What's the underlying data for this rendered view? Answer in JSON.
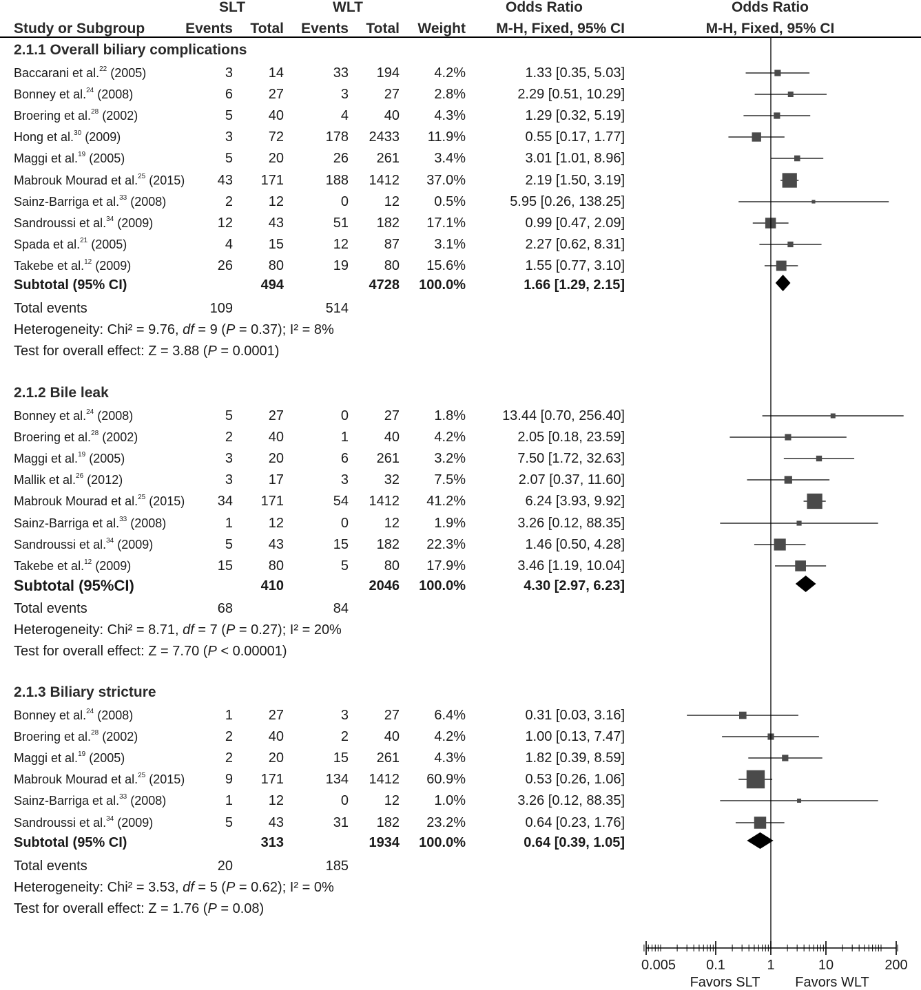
{
  "header": {
    "group1": "SLT",
    "group2": "WLT",
    "or_col": "Odds Ratio",
    "or_col2": "Odds Ratio",
    "study_col": "Study or Subgroup",
    "events1": "Events",
    "total1": "Total",
    "events2": "Events",
    "total2": "Total",
    "weight": "Weight",
    "method1": "M-H, Fixed, 95% CI",
    "method2": "M-H, Fixed, 95% CI"
  },
  "chart_data": {
    "type": "forest",
    "x_scale": "log",
    "xlim": [
      0.005,
      200
    ],
    "reference_line": 1,
    "ticks": [
      0.005,
      0.1,
      1,
      10,
      200
    ],
    "tick_labels": [
      "0.005",
      "0.1",
      "1",
      "10",
      "200"
    ],
    "favors_left": "Favors SLT",
    "favors_right": "Favors WLT",
    "subgroups": [
      {
        "title": "2.1.1 Overall biliary complications",
        "studies": [
          {
            "author": "Baccarani et al.",
            "ref": "22",
            "year": "(2005)",
            "e1": "3",
            "t1": "14",
            "e2": "33",
            "t2": "194",
            "weight": "4.2%",
            "ci_text": "1.33 [0.35, 5.03]",
            "or": 1.33,
            "lo": 0.35,
            "hi": 5.03
          },
          {
            "author": "Bonney et al.",
            "ref": "24",
            "year": "(2008)",
            "e1": "6",
            "t1": "27",
            "e2": "3",
            "t2": "27",
            "weight": "2.8%",
            "ci_text": "2.29 [0.51, 10.29]",
            "or": 2.29,
            "lo": 0.51,
            "hi": 10.29
          },
          {
            "author": "Broering et al.",
            "ref": "28",
            "year": "(2002)",
            "e1": "5",
            "t1": "40",
            "e2": "4",
            "t2": "40",
            "weight": "4.3%",
            "ci_text": "1.29 [0.32, 5.19]",
            "or": 1.29,
            "lo": 0.32,
            "hi": 5.19
          },
          {
            "author": "Hong et al.",
            "ref": "30",
            "year": "(2009)",
            "e1": "3",
            "t1": "72",
            "e2": "178",
            "t2": "2433",
            "weight": "11.9%",
            "ci_text": "0.55 [0.17, 1.77]",
            "or": 0.55,
            "lo": 0.17,
            "hi": 1.77
          },
          {
            "author": "Maggi et al.",
            "ref": "19",
            "year": "(2005)",
            "e1": "5",
            "t1": "20",
            "e2": "26",
            "t2": "261",
            "weight": "3.4%",
            "ci_text": "3.01 [1.01, 8.96]",
            "or": 3.01,
            "lo": 1.01,
            "hi": 8.96
          },
          {
            "author": "Mabrouk Mourad et al.",
            "ref": "25",
            "year": "(2015)",
            "e1": "43",
            "t1": "171",
            "e2": "188",
            "t2": "1412",
            "weight": "37.0%",
            "ci_text": "2.19 [1.50, 3.19]",
            "or": 2.19,
            "lo": 1.5,
            "hi": 3.19
          },
          {
            "author": "Sainz-Barriga et al.",
            "ref": "33",
            "year": "(2008)",
            "e1": "2",
            "t1": "12",
            "e2": "0",
            "t2": "12",
            "weight": "0.5%",
            "ci_text": "5.95 [0.26, 138.25]",
            "or": 5.95,
            "lo": 0.26,
            "hi": 138.25
          },
          {
            "author": "Sandroussi et al.",
            "ref": "34",
            "year": "(2009)",
            "e1": "12",
            "t1": "43",
            "e2": "51",
            "t2": "182",
            "weight": "17.1%",
            "ci_text": "0.99 [0.47, 2.09]",
            "or": 0.99,
            "lo": 0.47,
            "hi": 2.09
          },
          {
            "author": "Spada et al.",
            "ref": "21",
            "year": "(2005)",
            "e1": "4",
            "t1": "15",
            "e2": "12",
            "t2": "87",
            "weight": "3.1%",
            "ci_text": "2.27 [0.62, 8.31]",
            "or": 2.27,
            "lo": 0.62,
            "hi": 8.31
          },
          {
            "author": "Takebe et al.",
            "ref": "12",
            "year": "(2009)",
            "e1": "26",
            "t1": "80",
            "e2": "19",
            "t2": "80",
            "weight": "15.6%",
            "ci_text": "1.55 [0.77, 3.10]",
            "or": 1.55,
            "lo": 0.77,
            "hi": 3.1
          }
        ],
        "subtotal": {
          "label": "Subtotal (95% CI)",
          "t1": "494",
          "t2": "4728",
          "weight": "100.0%",
          "ci_text": "1.66 [1.29, 2.15]",
          "or": 1.66,
          "lo": 1.29,
          "hi": 2.15
        },
        "total_events": {
          "label": "Total events",
          "e1": "109",
          "e2": "514"
        },
        "heterogeneity": {
          "pre": "Heterogeneity: Chi² = 9.76, ",
          "df": "df",
          "mid": " = 9 (",
          "p": "P",
          "post": " = 0.37); I² = 8%"
        },
        "overall": {
          "pre": "Test for overall effect: Z = 3.88 (",
          "p": "P",
          "post": " = 0.0001)"
        }
      },
      {
        "title": "2.1.2 Bile leak",
        "studies": [
          {
            "author": "Bonney et al.",
            "ref": "24",
            "year": "(2008)",
            "e1": "5",
            "t1": "27",
            "e2": "0",
            "t2": "27",
            "weight": "1.8%",
            "ci_text": "13.44 [0.70, 256.40]",
            "or": 13.44,
            "lo": 0.7,
            "hi": 256.4
          },
          {
            "author": "Broering et al.",
            "ref": "28",
            "year": "(2002)",
            "e1": "2",
            "t1": "40",
            "e2": "1",
            "t2": "40",
            "weight": "4.2%",
            "ci_text": "2.05 [0.18, 23.59]",
            "or": 2.05,
            "lo": 0.18,
            "hi": 23.59
          },
          {
            "author": "Maggi et al.",
            "ref": "19",
            "year": "(2005)",
            "e1": "3",
            "t1": "20",
            "e2": "6",
            "t2": "261",
            "weight": "3.2%",
            "ci_text": "7.50 [1.72, 32.63]",
            "or": 7.5,
            "lo": 1.72,
            "hi": 32.63
          },
          {
            "author": "Mallik et al.",
            "ref": "26",
            "year": "(2012)",
            "e1": "3",
            "t1": "17",
            "e2": "3",
            "t2": "32",
            "weight": "7.5%",
            "ci_text": "2.07 [0.37, 11.60]",
            "or": 2.07,
            "lo": 0.37,
            "hi": 11.6
          },
          {
            "author": "Mabrouk Mourad et al.",
            "ref": "25",
            "year": "(2015)",
            "e1": "34",
            "t1": "171",
            "e2": "54",
            "t2": "1412",
            "weight": "41.2%",
            "ci_text": "6.24 [3.93, 9.92]",
            "or": 6.24,
            "lo": 3.93,
            "hi": 9.92
          },
          {
            "author": "Sainz-Barriga et al.",
            "ref": "33",
            "year": "(2008)",
            "e1": "1",
            "t1": "12",
            "e2": "0",
            "t2": "12",
            "weight": "1.9%",
            "ci_text": "3.26 [0.12, 88.35]",
            "or": 3.26,
            "lo": 0.12,
            "hi": 88.35
          },
          {
            "author": "Sandroussi et al.",
            "ref": "34",
            "year": "(2009)",
            "e1": "5",
            "t1": "43",
            "e2": "15",
            "t2": "182",
            "weight": "22.3%",
            "ci_text": "1.46 [0.50, 4.28]",
            "or": 1.46,
            "lo": 0.5,
            "hi": 4.28
          },
          {
            "author": "Takebe et al.",
            "ref": "12",
            "year": "(2009)",
            "e1": "15",
            "t1": "80",
            "e2": "5",
            "t2": "80",
            "weight": "17.9%",
            "ci_text": "3.46 [1.19, 10.04]",
            "or": 3.46,
            "lo": 1.19,
            "hi": 10.04
          }
        ],
        "subtotal": {
          "label": "Subtotal (95%CI)",
          "t1": "410",
          "t2": "2046",
          "weight": "100.0%",
          "ci_text": "4.30 [2.97, 6.23]",
          "or": 4.3,
          "lo": 2.97,
          "hi": 6.23
        },
        "total_events": {
          "label": "Total events",
          "e1": "68",
          "e2": "84"
        },
        "heterogeneity": {
          "pre": "Heterogeneity: Chi² = 8.71, ",
          "df": "df",
          "mid": " = 7 (",
          "p": "P",
          "post": " = 0.27); I² = 20%"
        },
        "overall": {
          "pre": "Test for overall effect: Z = 7.70 (",
          "p": "P",
          "post": " < 0.00001)"
        }
      },
      {
        "title": "2.1.3 Biliary stricture",
        "studies": [
          {
            "author": "Bonney et al.",
            "ref": "24",
            "year": "(2008)",
            "e1": "1",
            "t1": "27",
            "e2": "3",
            "t2": "27",
            "weight": "6.4%",
            "ci_text": "0.31 [0.03, 3.16]",
            "or": 0.31,
            "lo": 0.03,
            "hi": 3.16
          },
          {
            "author": "Broering et al.",
            "ref": "28",
            "year": "(2002)",
            "e1": "2",
            "t1": "40",
            "e2": "2",
            "t2": "40",
            "weight": "4.2%",
            "ci_text": "1.00 [0.13, 7.47]",
            "or": 1.0,
            "lo": 0.13,
            "hi": 7.47
          },
          {
            "author": "Maggi et al.",
            "ref": "19",
            "year": "(2005)",
            "e1": "2",
            "t1": "20",
            "e2": "15",
            "t2": "261",
            "weight": "4.3%",
            "ci_text": "1.82 [0.39, 8.59]",
            "or": 1.82,
            "lo": 0.39,
            "hi": 8.59
          },
          {
            "author": "Mabrouk Mourad et al.",
            "ref": "25",
            "year": "(2015)",
            "e1": "9",
            "t1": "171",
            "e2": "134",
            "t2": "1412",
            "weight": "60.9%",
            "ci_text": "0.53 [0.26, 1.06]",
            "or": 0.53,
            "lo": 0.26,
            "hi": 1.06
          },
          {
            "author": "Sainz-Barriga et al.",
            "ref": "33",
            "year": "(2008)",
            "e1": "1",
            "t1": "12",
            "e2": "0",
            "t2": "12",
            "weight": "1.0%",
            "ci_text": "3.26 [0.12, 88.35]",
            "or": 3.26,
            "lo": 0.12,
            "hi": 88.35
          },
          {
            "author": "Sandroussi et al.",
            "ref": "34",
            "year": "(2009)",
            "e1": "5",
            "t1": "43",
            "e2": "31",
            "t2": "182",
            "weight": "23.2%",
            "ci_text": "0.64 [0.23, 1.76]",
            "or": 0.64,
            "lo": 0.23,
            "hi": 1.76
          }
        ],
        "subtotal": {
          "label": "Subtotal (95% CI)",
          "t1": "313",
          "t2": "1934",
          "weight": "100.0%",
          "ci_text": "0.64 [0.39, 1.05]",
          "or": 0.64,
          "lo": 0.39,
          "hi": 1.05
        },
        "total_events": {
          "label": "Total events",
          "e1": "20",
          "e2": "185"
        },
        "heterogeneity": {
          "pre": "Heterogeneity: Chi² = 3.53, ",
          "df": "df",
          "mid": " = 5 (",
          "p": "P",
          "post": " = 0.62); I² = 0%"
        },
        "overall": {
          "pre": "Test for overall effect: Z = 1.76 (",
          "p": "P",
          "post": " = 0.08)"
        }
      }
    ]
  },
  "colors": {
    "text": "#1a1a1a",
    "marker": "#4a4a4a",
    "line": "#000000"
  }
}
